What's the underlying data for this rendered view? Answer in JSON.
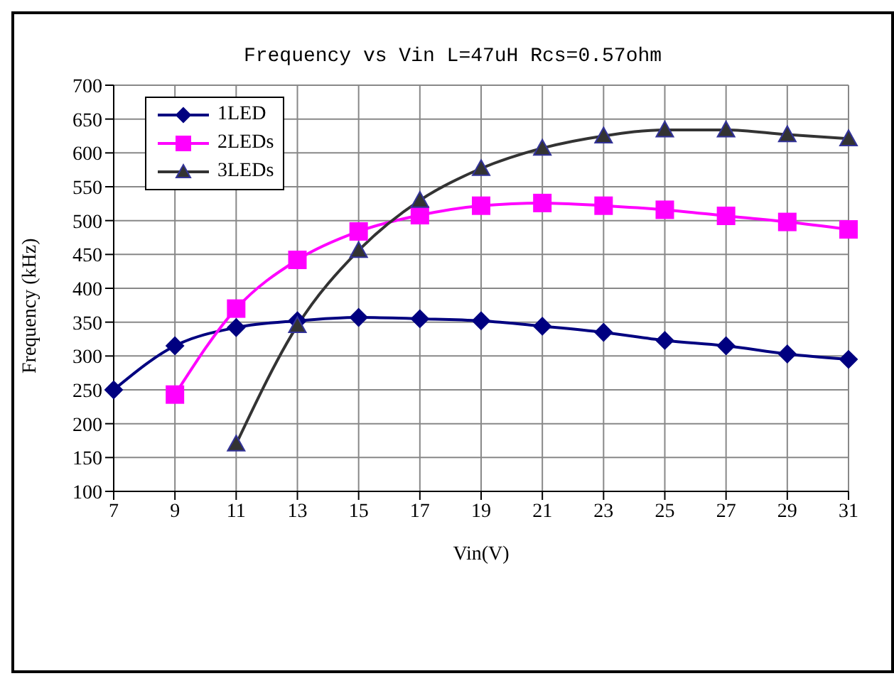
{
  "chart_data": {
    "type": "line",
    "title": "Frequency vs Vin L=47uH Rcs=0.57ohm",
    "xlabel": "Vin(V)",
    "ylabel": "Frequency (kHz)",
    "categories": [
      "7",
      "9",
      "11",
      "13",
      "15",
      "17",
      "19",
      "21",
      "23",
      "25",
      "27",
      "29",
      "31"
    ],
    "series": [
      {
        "name": "1LED",
        "color": "#000080",
        "marker": "diamond",
        "values": [
          250,
          315,
          342,
          352,
          357,
          355,
          352,
          344,
          335,
          323,
          315,
          303,
          295
        ]
      },
      {
        "name": "2LEDs",
        "color": "#ff00ff",
        "marker": "square",
        "values": [
          null,
          243,
          370,
          442,
          484,
          508,
          522,
          526,
          522,
          516,
          507,
          498,
          487
        ]
      },
      {
        "name": "3LEDs",
        "color": "#333333",
        "marker": "triangle",
        "values": [
          null,
          null,
          170,
          345,
          456,
          530,
          577,
          607,
          625,
          634,
          634,
          627,
          621
        ]
      }
    ],
    "ylim": [
      100,
      700
    ],
    "yticks": [
      100,
      150,
      200,
      250,
      300,
      350,
      400,
      450,
      500,
      550,
      600,
      650,
      700
    ],
    "grid": true,
    "legend": "top left",
    "line_style": "solid"
  }
}
